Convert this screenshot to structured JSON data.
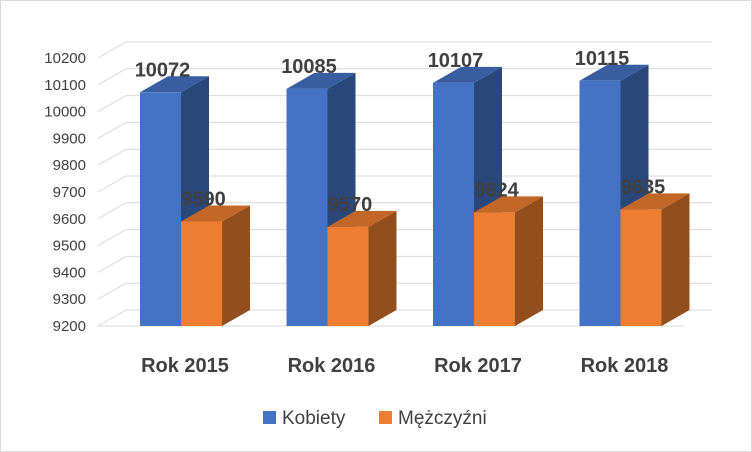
{
  "chart_data": {
    "type": "bar",
    "categories": [
      "Rok 2015",
      "Rok 2016",
      "Rok 2017",
      "Rok 2018"
    ],
    "series": [
      {
        "name": "Kobiety",
        "values": [
          10072,
          10085,
          10107,
          10115
        ],
        "labels": [
          "10072",
          "10085",
          "10107",
          "10115"
        ],
        "color": "#4472C4"
      },
      {
        "name": "Mężczyźni",
        "values": [
          9590,
          9570,
          9624,
          9635
        ],
        "labels": [
          "9590",
          "9570",
          "9624",
          "9635"
        ],
        "color": "#ED7D31"
      }
    ],
    "yticks": [
      "9200",
      "9300",
      "9400",
      "9500",
      "9600",
      "9700",
      "9800",
      "9900",
      "10000",
      "10100",
      "10200"
    ],
    "ylim": [
      9200,
      10200
    ],
    "grid": true,
    "legend_position": "bottom",
    "style": "3d-clustered-column"
  }
}
